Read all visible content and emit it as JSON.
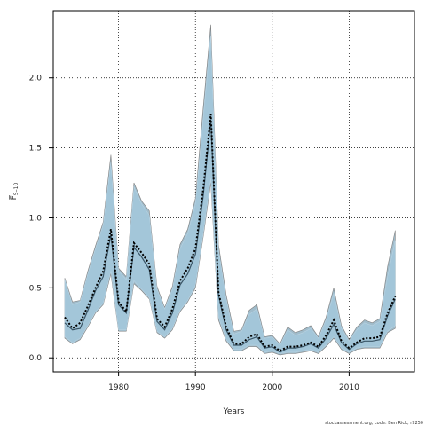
{
  "chart_data": {
    "type": "area",
    "xlabel": "Years",
    "ylabel": "F̅",
    "ylabel_subscript": "5–10",
    "xlim": [
      1971.5,
      2018.5
    ],
    "ylim": [
      -0.1,
      2.48
    ],
    "xticks": [
      1980,
      1990,
      2000,
      2010
    ],
    "yticks": [
      0.0,
      0.5,
      1.0,
      1.5,
      2.0
    ],
    "ytick_labels": [
      "0.0",
      "0.5",
      "1.0",
      "1.5",
      "2.0"
    ],
    "grid": true,
    "colors": {
      "band_outer": "#9bb8c8",
      "band_inner": "#a3c6da",
      "band_edge": "#808080",
      "median": "#000000",
      "grid": "#000000"
    },
    "x": [
      1973,
      1974,
      1975,
      1976,
      1977,
      1978,
      1979,
      1980,
      1981,
      1982,
      1983,
      1984,
      1985,
      1986,
      1987,
      1988,
      1989,
      1990,
      1991,
      1992,
      1993,
      1994,
      1995,
      1996,
      1997,
      1998,
      1999,
      2000,
      2001,
      2002,
      2003,
      2004,
      2005,
      2006,
      2007,
      2008,
      2009,
      2010,
      2011,
      2012,
      2013,
      2014,
      2015,
      2016
    ],
    "series": [
      {
        "values": [
          0.29,
          0.21,
          0.25,
          0.37,
          0.5,
          0.62,
          0.92,
          0.4,
          0.33,
          0.82,
          0.75,
          0.67,
          0.28,
          0.22,
          0.35,
          0.55,
          0.64,
          0.78,
          1.2,
          1.74,
          0.47,
          0.22,
          0.1,
          0.1,
          0.15,
          0.17,
          0.08,
          0.09,
          0.05,
          0.08,
          0.08,
          0.09,
          0.11,
          0.08,
          0.16,
          0.27,
          0.12,
          0.07,
          0.11,
          0.14,
          0.14,
          0.15,
          0.32,
          0.44
        ]
      },
      {
        "values": [
          0.25,
          0.2,
          0.21,
          0.34,
          0.48,
          0.58,
          0.88,
          0.38,
          0.32,
          0.79,
          0.72,
          0.63,
          0.26,
          0.2,
          0.32,
          0.52,
          0.6,
          0.74,
          1.15,
          1.7,
          0.45,
          0.2,
          0.09,
          0.09,
          0.13,
          0.15,
          0.07,
          0.08,
          0.04,
          0.07,
          0.07,
          0.08,
          0.1,
          0.07,
          0.14,
          0.24,
          0.11,
          0.06,
          0.1,
          0.12,
          0.12,
          0.13,
          0.3,
          0.42
        ]
      },
      {
        "values": [
          0.57,
          0.4,
          0.41,
          0.62,
          0.8,
          0.97,
          1.45,
          0.64,
          0.58,
          1.25,
          1.12,
          1.05,
          0.51,
          0.36,
          0.51,
          0.81,
          0.92,
          1.14,
          1.78,
          2.38,
          0.81,
          0.45,
          0.19,
          0.2,
          0.34,
          0.38,
          0.15,
          0.16,
          0.1,
          0.22,
          0.18,
          0.2,
          0.23,
          0.15,
          0.29,
          0.5,
          0.23,
          0.13,
          0.22,
          0.27,
          0.25,
          0.28,
          0.65,
          0.91
        ]
      },
      {
        "values": [
          0.14,
          0.1,
          0.13,
          0.22,
          0.32,
          0.38,
          0.6,
          0.19,
          0.19,
          0.53,
          0.48,
          0.42,
          0.18,
          0.14,
          0.2,
          0.33,
          0.4,
          0.5,
          0.86,
          1.25,
          0.27,
          0.12,
          0.05,
          0.05,
          0.08,
          0.08,
          0.03,
          0.04,
          0.02,
          0.03,
          0.03,
          0.04,
          0.05,
          0.03,
          0.08,
          0.14,
          0.06,
          0.03,
          0.06,
          0.07,
          0.07,
          0.07,
          0.18,
          0.21
        ]
      },
      {
        "values": [
          0.56,
          0.38,
          0.4,
          0.6,
          0.78,
          0.95,
          1.4,
          0.62,
          0.56,
          1.22,
          1.1,
          1.02,
          0.49,
          0.35,
          0.49,
          0.78,
          0.89,
          1.1,
          1.7,
          2.3,
          0.77,
          0.42,
          0.17,
          0.19,
          0.31,
          0.35,
          0.14,
          0.15,
          0.09,
          0.2,
          0.16,
          0.18,
          0.21,
          0.14,
          0.27,
          0.46,
          0.21,
          0.12,
          0.2,
          0.25,
          0.23,
          0.26,
          0.58,
          0.84
        ]
      },
      {
        "values": [
          0.15,
          0.11,
          0.14,
          0.23,
          0.33,
          0.39,
          0.62,
          0.2,
          0.2,
          0.55,
          0.49,
          0.43,
          0.19,
          0.15,
          0.21,
          0.34,
          0.41,
          0.52,
          0.88,
          1.28,
          0.29,
          0.13,
          0.06,
          0.06,
          0.09,
          0.09,
          0.04,
          0.05,
          0.03,
          0.04,
          0.04,
          0.05,
          0.06,
          0.04,
          0.09,
          0.15,
          0.07,
          0.04,
          0.07,
          0.08,
          0.08,
          0.08,
          0.19,
          0.23
        ]
      }
    ]
  },
  "footer": "stockassessment.org, code: Ben Rick, r9250"
}
